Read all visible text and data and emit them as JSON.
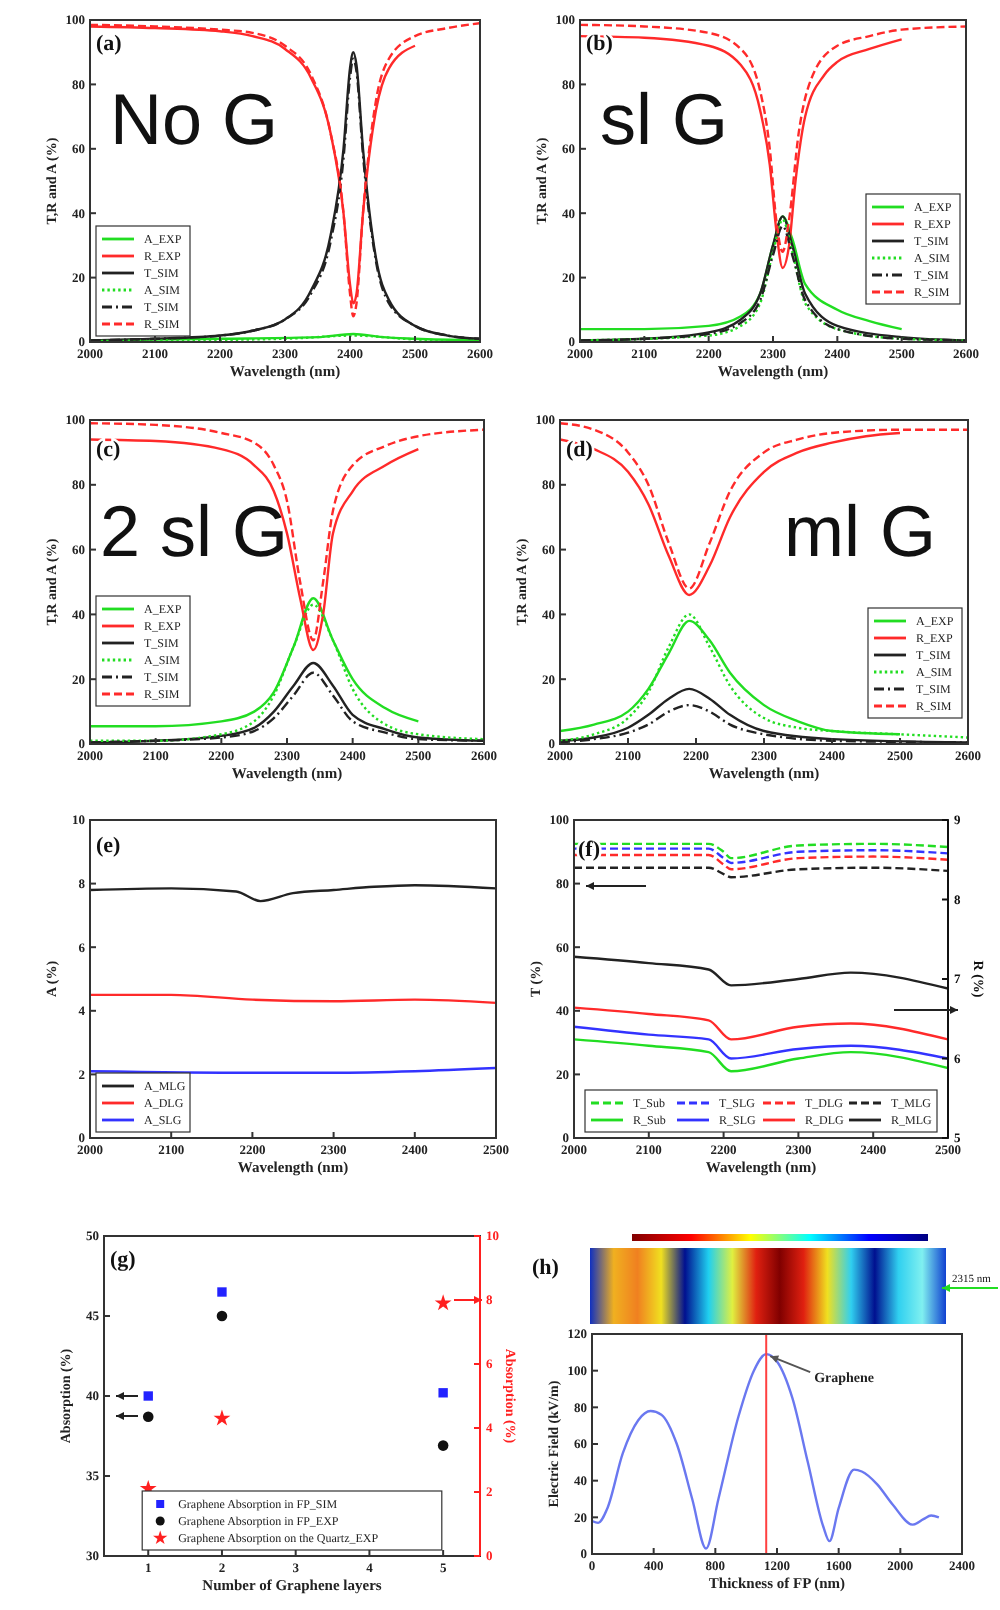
{
  "chart_data": [
    {
      "type": "line",
      "annotations": [
        "(a)",
        "No G"
      ],
      "xlabel": "Wavelength (nm)",
      "ylabel": "T,R and A (%)",
      "xlim": [
        2000,
        2600
      ],
      "xticks": [
        2000,
        2100,
        2200,
        2300,
        2400,
        2500,
        2600
      ],
      "ylim": [
        0,
        100
      ],
      "yticks": [
        0,
        20,
        40,
        60,
        80,
        100
      ],
      "legend": "bottom left",
      "series": [
        {
          "name": "A_EXP",
          "color": "#22dd22",
          "line_style": "solid",
          "x": [
            2000,
            2200,
            2350,
            2405,
            2450,
            2500,
            2600
          ],
          "values": [
            0.5,
            1,
            1.5,
            2.5,
            1.5,
            1,
            0.5
          ]
        },
        {
          "name": "R_EXP",
          "color": "#ff2a2a",
          "line_style": "solid",
          "x": [
            2000,
            2100,
            2200,
            2250,
            2300,
            2340,
            2370,
            2390,
            2400,
            2405,
            2410,
            2420,
            2440,
            2460,
            2500
          ],
          "values": [
            98,
            97.5,
            96.5,
            95,
            91,
            82,
            65,
            40,
            18,
            12,
            15,
            40,
            72,
            85,
            92
          ]
        },
        {
          "name": "T_SIM",
          "color": "#222222",
          "line_style": "solid",
          "x": [
            2000,
            2100,
            2200,
            2250,
            2300,
            2340,
            2370,
            2390,
            2400,
            2405,
            2410,
            2420,
            2440,
            2460,
            2500,
            2550,
            2600
          ],
          "values": [
            0.5,
            1,
            2,
            3.5,
            7,
            16,
            33,
            60,
            85,
            90,
            86,
            60,
            26,
            13,
            5,
            2,
            1
          ]
        },
        {
          "name": "A_SIM",
          "color": "#22dd22",
          "line_style": "dotted",
          "x": [
            2000,
            2300,
            2405,
            2500,
            2600
          ],
          "values": [
            0.3,
            1,
            2,
            0.8,
            0.3
          ]
        },
        {
          "name": "T_SIM",
          "color": "#222222",
          "line_style": "dashdot",
          "x": [
            2000,
            2100,
            2200,
            2250,
            2300,
            2340,
            2370,
            2390,
            2400,
            2405,
            2410,
            2420,
            2440,
            2460,
            2500,
            2550,
            2600
          ],
          "values": [
            0.5,
            1,
            2,
            3.5,
            7,
            15,
            31,
            57,
            82,
            88,
            84,
            58,
            25,
            12,
            5,
            2,
            1
          ]
        },
        {
          "name": "R_SIM",
          "color": "#ff2a2a",
          "line_style": "dashed",
          "x": [
            2000,
            2100,
            2200,
            2250,
            2300,
            2340,
            2370,
            2390,
            2400,
            2405,
            2410,
            2420,
            2440,
            2460,
            2500,
            2550,
            2600
          ],
          "values": [
            98.5,
            98,
            97,
            96,
            92,
            83,
            65,
            40,
            15,
            8,
            12,
            40,
            75,
            88,
            95,
            97.5,
            99
          ]
        }
      ]
    },
    {
      "type": "line",
      "annotations": [
        "(b)",
        "sl G"
      ],
      "xlabel": "Wavelength (nm)",
      "ylabel": "T,R and A (%)",
      "xlim": [
        2000,
        2600
      ],
      "xticks": [
        2000,
        2100,
        2200,
        2300,
        2400,
        2500,
        2600
      ],
      "ylim": [
        0,
        100
      ],
      "yticks": [
        0,
        20,
        40,
        60,
        80,
        100
      ],
      "legend": "bottom right",
      "series": [
        {
          "name": "A_EXP",
          "color": "#22dd22",
          "line_style": "solid",
          "x": [
            2000,
            2100,
            2200,
            2250,
            2280,
            2300,
            2315,
            2330,
            2350,
            2400,
            2450,
            2500
          ],
          "values": [
            4,
            4,
            5,
            8,
            15,
            30,
            39,
            32,
            18,
            10,
            6.5,
            4
          ]
        },
        {
          "name": "R_EXP",
          "color": "#ff2a2a",
          "line_style": "solid",
          "x": [
            2000,
            2100,
            2200,
            2250,
            2280,
            2295,
            2305,
            2315,
            2325,
            2335,
            2350,
            2380,
            2400,
            2450,
            2500
          ],
          "values": [
            95,
            94.5,
            92,
            86,
            72,
            55,
            35,
            23,
            30,
            50,
            70,
            83,
            87,
            91,
            94
          ]
        },
        {
          "name": "T_SIM",
          "color": "#222222",
          "line_style": "solid",
          "x": [
            2000,
            2100,
            2200,
            2250,
            2280,
            2300,
            2315,
            2330,
            2350,
            2400,
            2500,
            2600
          ],
          "values": [
            0.5,
            1,
            3,
            7,
            15,
            30,
            39,
            30,
            15,
            5,
            1.5,
            0.5
          ]
        },
        {
          "name": "A_SIM",
          "color": "#22dd22",
          "line_style": "dotted",
          "x": [
            2000,
            2200,
            2250,
            2280,
            2300,
            2315,
            2330,
            2350,
            2400,
            2500,
            2600
          ],
          "values": [
            0.5,
            2,
            5,
            12,
            28,
            38,
            28,
            12,
            4,
            1,
            0.5
          ]
        },
        {
          "name": "T_SIM",
          "color": "#222222",
          "line_style": "dashdot",
          "x": [
            2000,
            2100,
            2200,
            2250,
            2280,
            2300,
            2315,
            2330,
            2350,
            2400,
            2500,
            2600
          ],
          "values": [
            0.5,
            1,
            2.5,
            6,
            13,
            27,
            36,
            27,
            13,
            4,
            1,
            0.5
          ]
        },
        {
          "name": "R_SIM",
          "color": "#ff2a2a",
          "line_style": "dashed",
          "x": [
            2000,
            2100,
            2200,
            2250,
            2280,
            2295,
            2305,
            2315,
            2325,
            2340,
            2360,
            2400,
            2450,
            2500,
            2600
          ],
          "values": [
            98.5,
            98,
            96,
            91,
            78,
            60,
            38,
            28,
            38,
            65,
            82,
            92,
            95,
            97,
            98
          ]
        }
      ]
    },
    {
      "type": "line",
      "annotations": [
        "(c)",
        "2 sl G"
      ],
      "xlabel": "Wavelength (nm)",
      "ylabel": "T,R and A (%)",
      "xlim": [
        2000,
        2600
      ],
      "xticks": [
        2000,
        2100,
        2200,
        2300,
        2400,
        2500,
        2600
      ],
      "ylim": [
        0,
        100
      ],
      "yticks": [
        0,
        20,
        40,
        60,
        80,
        100
      ],
      "legend": "bottom left",
      "series": [
        {
          "name": "A_EXP",
          "color": "#22dd22",
          "line_style": "solid",
          "x": [
            2000,
            2100,
            2200,
            2250,
            2280,
            2310,
            2340,
            2370,
            2400,
            2450,
            2500
          ],
          "values": [
            5.5,
            5.5,
            7,
            10,
            16,
            30,
            45,
            32,
            20,
            11,
            7
          ]
        },
        {
          "name": "R_EXP",
          "color": "#ff2a2a",
          "line_style": "solid",
          "x": [
            2000,
            2100,
            2200,
            2250,
            2280,
            2300,
            2320,
            2340,
            2355,
            2370,
            2400,
            2450,
            2500
          ],
          "values": [
            94,
            93.5,
            91,
            86,
            78,
            65,
            45,
            29,
            40,
            65,
            78,
            86,
            91
          ]
        },
        {
          "name": "T_SIM",
          "color": "#222222",
          "line_style": "solid",
          "x": [
            2000,
            2100,
            2200,
            2250,
            2280,
            2310,
            2340,
            2370,
            2400,
            2450,
            2500,
            2600
          ],
          "values": [
            0.5,
            1,
            2.5,
            5,
            10,
            18,
            25,
            18,
            9,
            4.5,
            2,
            1
          ]
        },
        {
          "name": "A_SIM",
          "color": "#22dd22",
          "line_style": "dotted",
          "x": [
            2000,
            2100,
            2200,
            2250,
            2280,
            2310,
            2340,
            2370,
            2400,
            2450,
            2500,
            2600
          ],
          "values": [
            1,
            1,
            3,
            7,
            15,
            30,
            43,
            32,
            17,
            6,
            3,
            1.5
          ]
        },
        {
          "name": "T_SIM",
          "color": "#222222",
          "line_style": "dashdot",
          "x": [
            2000,
            2100,
            2200,
            2250,
            2280,
            2310,
            2340,
            2370,
            2400,
            2450,
            2500,
            2600
          ],
          "values": [
            0.5,
            1,
            2,
            4,
            8,
            15,
            22,
            15,
            7,
            3.5,
            1.5,
            1
          ]
        },
        {
          "name": "R_SIM",
          "color": "#ff2a2a",
          "line_style": "dashed",
          "x": [
            2000,
            2100,
            2200,
            2250,
            2280,
            2300,
            2320,
            2340,
            2355,
            2370,
            2400,
            2450,
            2500,
            2600
          ],
          "values": [
            99,
            98.5,
            96,
            93,
            86,
            75,
            50,
            32,
            50,
            72,
            86,
            92,
            95,
            97
          ]
        }
      ]
    },
    {
      "type": "line",
      "annotations": [
        "(d)",
        "ml G"
      ],
      "xlabel": "Wavelength (nm)",
      "ylabel": "T,R and A (%)",
      "xlim": [
        2000,
        2600
      ],
      "xticks": [
        2000,
        2100,
        2200,
        2300,
        2400,
        2500,
        2600
      ],
      "ylim": [
        0,
        100
      ],
      "yticks": [
        0,
        20,
        40,
        60,
        80,
        100
      ],
      "legend": "bottom right",
      "series": [
        {
          "name": "A_EXP",
          "color": "#22dd22",
          "line_style": "solid",
          "x": [
            2000,
            2050,
            2100,
            2130,
            2160,
            2190,
            2220,
            2250,
            2300,
            2350,
            2400,
            2500
          ],
          "values": [
            4,
            6,
            10,
            17,
            28,
            38,
            32,
            22,
            12,
            7,
            4,
            3
          ]
        },
        {
          "name": "R_EXP",
          "color": "#ff2a2a",
          "line_style": "solid",
          "x": [
            2000,
            2050,
            2100,
            2130,
            2160,
            2190,
            2220,
            2250,
            2300,
            2350,
            2400,
            2450,
            2500
          ],
          "values": [
            94,
            91,
            84,
            74,
            58,
            46,
            55,
            70,
            84,
            90,
            93,
            95,
            96
          ]
        },
        {
          "name": "T_SIM",
          "color": "#222222",
          "line_style": "solid",
          "x": [
            2000,
            2050,
            2100,
            2130,
            2160,
            2190,
            2220,
            2250,
            2300,
            2400,
            2600
          ],
          "values": [
            1,
            2,
            5,
            9,
            14,
            17,
            14,
            9,
            4,
            1.5,
            0.5
          ]
        },
        {
          "name": "A_SIM",
          "color": "#22dd22",
          "line_style": "dotted",
          "x": [
            2000,
            2050,
            2100,
            2130,
            2160,
            2190,
            2220,
            2250,
            2300,
            2350,
            2400,
            2500,
            2600
          ],
          "values": [
            1,
            3,
            8,
            16,
            30,
            40,
            30,
            18,
            8,
            5,
            4,
            3,
            2
          ]
        },
        {
          "name": "T_SIM",
          "color": "#222222",
          "line_style": "dashdot",
          "x": [
            2000,
            2050,
            2100,
            2130,
            2160,
            2190,
            2220,
            2250,
            2300,
            2400,
            2600
          ],
          "values": [
            0.5,
            1.5,
            3.5,
            6,
            10,
            12,
            10,
            6,
            3,
            1,
            0.5
          ]
        },
        {
          "name": "R_SIM",
          "color": "#ff2a2a",
          "line_style": "dashed",
          "x": [
            2000,
            2050,
            2100,
            2130,
            2160,
            2190,
            2220,
            2250,
            2300,
            2350,
            2400,
            2500,
            2600
          ],
          "values": [
            99,
            97,
            90,
            80,
            62,
            48,
            62,
            78,
            90,
            94,
            96,
            97,
            97
          ]
        }
      ]
    },
    {
      "type": "line",
      "annotations": [
        "(e)"
      ],
      "xlabel": "Wavelength (nm)",
      "ylabel": "A (%)",
      "xlim": [
        2000,
        2500
      ],
      "xticks": [
        2000,
        2100,
        2200,
        2300,
        2400,
        2500
      ],
      "ylim": [
        0,
        10
      ],
      "yticks": [
        0,
        2,
        4,
        6,
        8,
        10
      ],
      "legend": "bottom left",
      "series": [
        {
          "name": "A_MLG",
          "color": "#222222",
          "line_style": "solid",
          "x": [
            2000,
            2100,
            2180,
            2210,
            2250,
            2300,
            2350,
            2400,
            2500
          ],
          "values": [
            7.8,
            7.85,
            7.75,
            7.45,
            7.7,
            7.8,
            7.9,
            7.95,
            7.85
          ]
        },
        {
          "name": "A_DLG",
          "color": "#ff2a2a",
          "line_style": "solid",
          "x": [
            2000,
            2100,
            2200,
            2300,
            2400,
            2500
          ],
          "values": [
            4.5,
            4.5,
            4.35,
            4.3,
            4.35,
            4.25
          ]
        },
        {
          "name": "A_SLG",
          "color": "#3333ff",
          "line_style": "solid",
          "x": [
            2000,
            2200,
            2300,
            2400,
            2500
          ],
          "values": [
            2.1,
            2.05,
            2.05,
            2.1,
            2.2
          ]
        }
      ]
    },
    {
      "type": "line",
      "annotations": [
        "(f)"
      ],
      "xlabel": "Wavelength (nm)",
      "ylabel": "T (%)",
      "y2label": "R (%)",
      "xlim": [
        2000,
        2500
      ],
      "xticks": [
        2000,
        2100,
        2200,
        2300,
        2400,
        2500
      ],
      "ylim": [
        0,
        100
      ],
      "yticks": [
        0,
        20,
        40,
        60,
        80,
        100
      ],
      "y2lim": [
        5,
        9
      ],
      "y2ticks": [
        5,
        6,
        7,
        8,
        9
      ],
      "legend": "bottom",
      "series": [
        {
          "name": "T_Sub",
          "color": "#22dd22",
          "line_style": "dashed",
          "x": [
            2000,
            2180,
            2200,
            2210,
            2300,
            2400,
            2500
          ],
          "values": [
            92.5,
            92.5,
            90,
            88,
            92,
            92.5,
            91.5
          ]
        },
        {
          "name": "T_SLG",
          "color": "#3333ff",
          "line_style": "dashed",
          "x": [
            2000,
            2180,
            2200,
            2210,
            2300,
            2400,
            2500
          ],
          "values": [
            91,
            91,
            88,
            86.5,
            90,
            90.5,
            89.5
          ]
        },
        {
          "name": "T_DLG",
          "color": "#ff2a2a",
          "line_style": "dashed",
          "x": [
            2000,
            2180,
            2200,
            2210,
            2300,
            2400,
            2500
          ],
          "values": [
            89,
            89,
            86,
            84.5,
            88,
            88.5,
            87.5
          ]
        },
        {
          "name": "T_MLG",
          "color": "#222222",
          "line_style": "dashed",
          "x": [
            2000,
            2180,
            2200,
            2210,
            2300,
            2400,
            2500
          ],
          "values": [
            85,
            85,
            83,
            82,
            84.5,
            85,
            84
          ]
        },
        {
          "name": "R_Sub",
          "color": "#22dd22",
          "line_style": "solid",
          "axis": "y2",
          "x": [
            2000,
            2100,
            2180,
            2210,
            2300,
            2370,
            2500
          ],
          "values": [
            6.24,
            6.16,
            6.08,
            5.84,
            6,
            6.08,
            5.88
          ]
        },
        {
          "name": "R_SLG",
          "color": "#3333ff",
          "line_style": "solid",
          "axis": "y2",
          "x": [
            2000,
            2100,
            2180,
            2210,
            2300,
            2370,
            2500
          ],
          "values": [
            6.4,
            6.3,
            6.24,
            6,
            6.12,
            6.16,
            6
          ]
        },
        {
          "name": "R_DLG",
          "color": "#ff2a2a",
          "line_style": "solid",
          "axis": "y2",
          "x": [
            2000,
            2100,
            2180,
            2210,
            2300,
            2370,
            2500
          ],
          "values": [
            6.64,
            6.56,
            6.48,
            6.24,
            6.4,
            6.44,
            6.24
          ]
        },
        {
          "name": "R_MLG",
          "color": "#222222",
          "line_style": "solid",
          "axis": "y2",
          "x": [
            2000,
            2100,
            2180,
            2210,
            2300,
            2370,
            2500
          ],
          "values": [
            7.28,
            7.2,
            7.12,
            6.92,
            7,
            7.08,
            6.88
          ]
        }
      ]
    },
    {
      "type": "scatter",
      "annotations": [
        "(g)"
      ],
      "xlabel": "Number of Graphene layers",
      "ylabel": "Absorption (%)",
      "y2label": "Absorption (%)",
      "xlim": [
        0.4,
        5.5
      ],
      "xticks": [
        1,
        2,
        3,
        4,
        5
      ],
      "ylim": [
        30,
        50
      ],
      "yticks": [
        30,
        35,
        40,
        45,
        50
      ],
      "y2lim": [
        0,
        10
      ],
      "y2ticks": [
        0,
        2,
        4,
        6,
        8,
        10
      ],
      "legend": "bottom",
      "series": [
        {
          "name": "Graphene Absorption in FP_SIM",
          "color": "#2222ff",
          "marker": "square",
          "x": [
            1,
            2,
            5
          ],
          "values": [
            40,
            46.5,
            40.2
          ]
        },
        {
          "name": "Graphene Absorption in FP_EXP",
          "color": "#111111",
          "marker": "circle",
          "x": [
            1,
            2,
            5
          ],
          "values": [
            38.7,
            45,
            36.9
          ]
        },
        {
          "name": "Graphene Absorption on the Quartz_EXP",
          "color": "#ff2020",
          "marker": "star",
          "axis": "y2",
          "x": [
            1,
            2,
            5
          ],
          "values": [
            2.1,
            4.3,
            7.9
          ]
        }
      ]
    },
    {
      "type": "line",
      "annotations": [
        "(h)",
        "2315 nm",
        {
          "text": "Graphene",
          "x": 1130,
          "y": 109
        }
      ],
      "xlabel": "Thickness of FP (nm)",
      "ylabel": "Electric Field (kV/m)",
      "xlim": [
        0,
        2400
      ],
      "xticks": [
        0,
        400,
        800,
        1200,
        1600,
        2000,
        2400
      ],
      "ylim": [
        0,
        120
      ],
      "yticks": [
        0,
        20,
        40,
        60,
        80,
        100,
        120
      ],
      "ref_lines": [
        {
          "axis": "x",
          "value": 1130,
          "color": "#ff4040"
        }
      ],
      "series": [
        {
          "color": "#6a78f0",
          "line_style": "solid",
          "x": [
            0,
            40,
            100,
            200,
            300,
            380,
            450,
            550,
            650,
            740,
            820,
            950,
            1050,
            1130,
            1200,
            1300,
            1400,
            1500,
            1540,
            1600,
            1700,
            1750,
            1850,
            1950,
            2080,
            2150,
            2200,
            2250
          ],
          "values": [
            18,
            17,
            25,
            55,
            73,
            78,
            76,
            60,
            30,
            3,
            30,
            75,
            100,
            109,
            105,
            85,
            50,
            15,
            7,
            25,
            46,
            45,
            38,
            27,
            16,
            19,
            21,
            20
          ]
        }
      ]
    }
  ]
}
